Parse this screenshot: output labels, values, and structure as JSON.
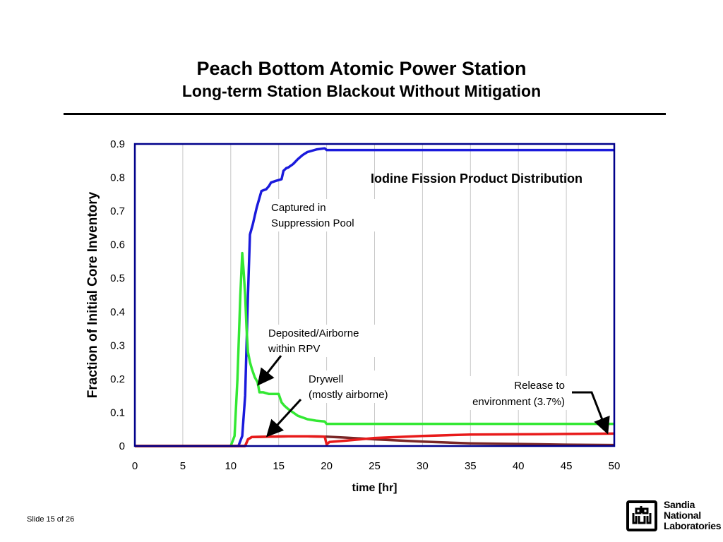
{
  "slide": {
    "title": "Peach Bottom Atomic Power Station",
    "subtitle": "Long-term Station Blackout Without Mitigation",
    "footer": "Slide 15 of 26",
    "logo": {
      "line1": "Sandia",
      "line2": "National",
      "line3": "Laboratories"
    }
  },
  "chart_data": {
    "type": "line",
    "title": "Iodine Fission Product Distribution",
    "xlabel": "time [hr]",
    "ylabel": "Fraction of Initial Core Inventory",
    "xlim": [
      0,
      50
    ],
    "ylim": [
      0,
      0.9
    ],
    "xticks": [
      0,
      5,
      10,
      15,
      20,
      25,
      30,
      35,
      40,
      45,
      50
    ],
    "yticks": [
      0,
      0.1,
      0.2,
      0.3,
      0.4,
      0.5,
      0.6,
      0.7,
      0.8,
      0.9
    ],
    "grid": "vertical",
    "series": [
      {
        "color": "#1a1adc",
        "x": [
          0,
          10.8,
          11.2,
          11.5,
          11.8,
          12.0,
          12.3,
          12.7,
          13.2,
          13.7,
          14.0,
          14.2,
          14.7,
          15.3,
          15.5,
          15.8,
          16.0,
          16.5,
          17.0,
          17.5,
          18.0,
          18.5,
          19.0,
          19.8,
          20.0,
          50
        ],
        "y": [
          0,
          0,
          0.03,
          0.15,
          0.45,
          0.63,
          0.66,
          0.71,
          0.76,
          0.765,
          0.775,
          0.785,
          0.79,
          0.795,
          0.82,
          0.828,
          0.83,
          0.84,
          0.855,
          0.867,
          0.876,
          0.88,
          0.884,
          0.887,
          0.882,
          0.882
        ]
      },
      {
        "color": "#33e833",
        "x": [
          0,
          10.0,
          10.4,
          10.7,
          11.0,
          11.2,
          11.35,
          11.5,
          11.65,
          11.8,
          12.0,
          12.2,
          12.5,
          12.8,
          13.0,
          13.4,
          14.0,
          14.3,
          15.0,
          15.3,
          15.6,
          16.0,
          17.0,
          18.0,
          19.0,
          19.8,
          20.0,
          50
        ],
        "y": [
          0,
          0,
          0.03,
          0.2,
          0.45,
          0.575,
          0.52,
          0.45,
          0.35,
          0.28,
          0.25,
          0.23,
          0.205,
          0.19,
          0.16,
          0.16,
          0.155,
          0.155,
          0.155,
          0.13,
          0.12,
          0.11,
          0.09,
          0.08,
          0.075,
          0.073,
          0.066,
          0.066
        ]
      },
      {
        "color": "#7a2626",
        "x": [
          0,
          11.5,
          11.8,
          12.2,
          14.0,
          16.0,
          18.0,
          20.0,
          22.0,
          25.0,
          30.0,
          35.0,
          40.0,
          45.0,
          50.0
        ],
        "y": [
          0,
          0,
          0.02,
          0.027,
          0.028,
          0.029,
          0.029,
          0.028,
          0.025,
          0.02,
          0.013,
          0.008,
          0.006,
          0.004,
          0.003
        ]
      },
      {
        "color": "#e81a1a",
        "x": [
          0,
          11.5,
          11.8,
          12.2,
          14.0,
          16.0,
          18.0,
          19.8,
          20.0,
          20.3,
          22.0,
          25.0,
          30.0,
          35.0,
          40.0,
          45.0,
          50.0
        ],
        "y": [
          0,
          0,
          0.02,
          0.027,
          0.028,
          0.029,
          0.029,
          0.028,
          0.005,
          0.012,
          0.016,
          0.024,
          0.03,
          0.034,
          0.035,
          0.036,
          0.037
        ]
      }
    ],
    "annotations": [
      {
        "lines": [
          "Captured in",
          "Suppression Pool"
        ]
      },
      {
        "lines": [
          "Deposited/Airborne",
          "within RPV"
        ]
      },
      {
        "lines": [
          "Drywell",
          "(mostly airborne)"
        ]
      },
      {
        "lines": [
          "Release to",
          "environment (3.7%)"
        ]
      }
    ]
  }
}
